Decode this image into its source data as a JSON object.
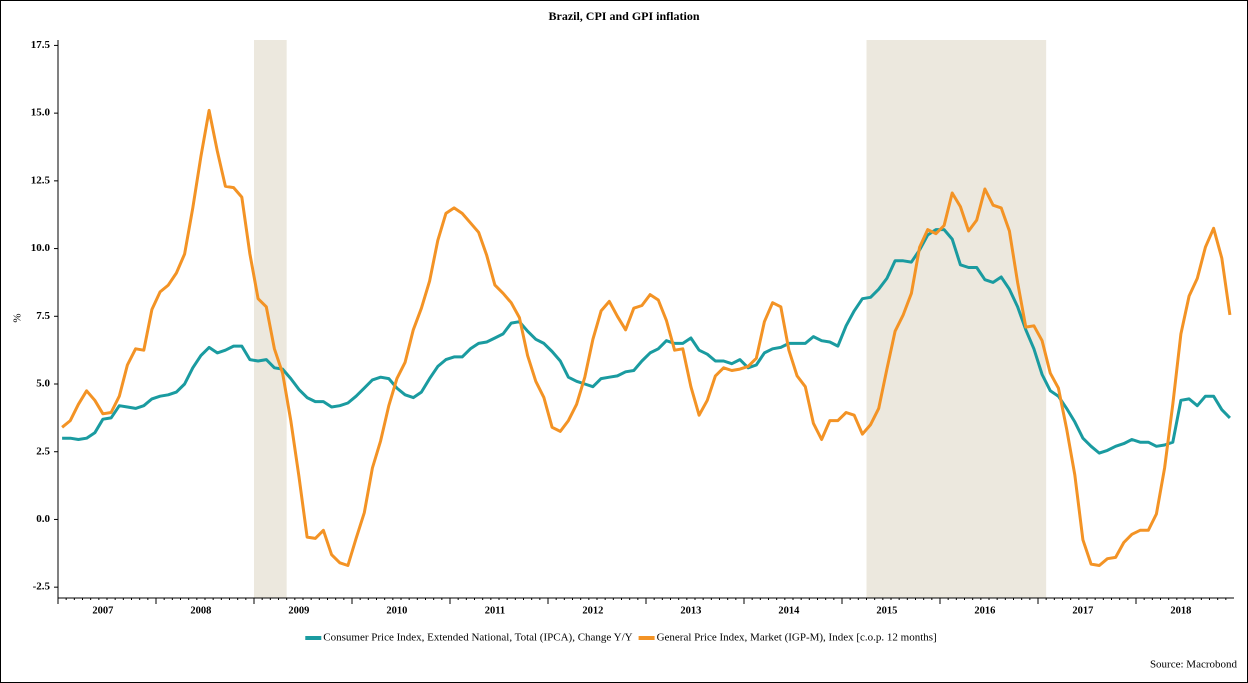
{
  "chart_data": {
    "type": "line",
    "title": "Brazil, CPI and GPI inflation",
    "y_label": "%",
    "source": "Source: Macrobond",
    "x": [
      null,
      null,
      null,
      null,
      null,
      null,
      "2007",
      null,
      null,
      null,
      null,
      null,
      null,
      null,
      null,
      null,
      null,
      null,
      "2008",
      null,
      null,
      null,
      null,
      null,
      null,
      null,
      null,
      null,
      null,
      null,
      "2009",
      null,
      null,
      null,
      null,
      null,
      null,
      null,
      null,
      null,
      null,
      null,
      "2010",
      null,
      null,
      null,
      null,
      null,
      null,
      null,
      null,
      null,
      null,
      null,
      "2011",
      null,
      null,
      null,
      null,
      null,
      null,
      null,
      null,
      null,
      null,
      null,
      "2012",
      null,
      null,
      null,
      null,
      null,
      null,
      null,
      null,
      null,
      null,
      null,
      "2013",
      null,
      null,
      null,
      null,
      null,
      null,
      null,
      null,
      null,
      null,
      null,
      "2014",
      null,
      null,
      null,
      null,
      null,
      null,
      null,
      null,
      null,
      null,
      null,
      "2015",
      null,
      null,
      null,
      null,
      null,
      null,
      null,
      null,
      null,
      null,
      null,
      "2016",
      null,
      null,
      null,
      null,
      null,
      null,
      null,
      null,
      null,
      null,
      null,
      "2017",
      null,
      null,
      null,
      null,
      null,
      null,
      null,
      null,
      null,
      null,
      null,
      "2018",
      null,
      null,
      null,
      null,
      null
    ],
    "series": [
      {
        "name": "Consumer Price Index, Extended National, Total (IPCA), Change Y/Y",
        "color": "#1a9ba0",
        "values": [
          3.0,
          3.0,
          2.95,
          3.0,
          3.2,
          3.7,
          3.75,
          4.2,
          4.15,
          4.1,
          4.2,
          4.45,
          4.55,
          4.6,
          4.7,
          5.0,
          5.6,
          6.05,
          6.35,
          6.15,
          6.25,
          6.4,
          6.4,
          5.9,
          5.85,
          5.9,
          5.6,
          5.55,
          5.2,
          4.8,
          4.5,
          4.35,
          4.35,
          4.15,
          4.2,
          4.3,
          4.55,
          4.85,
          5.15,
          5.25,
          5.2,
          4.85,
          4.6,
          4.5,
          4.7,
          5.2,
          5.65,
          5.9,
          6.0,
          6.0,
          6.3,
          6.5,
          6.55,
          6.7,
          6.85,
          7.25,
          7.3,
          6.95,
          6.65,
          6.5,
          6.2,
          5.85,
          5.25,
          5.1,
          5.0,
          4.9,
          5.2,
          5.25,
          5.3,
          5.45,
          5.5,
          5.85,
          6.15,
          6.3,
          6.6,
          6.5,
          6.5,
          6.7,
          6.25,
          6.1,
          5.85,
          5.85,
          5.75,
          5.9,
          5.6,
          5.7,
          6.15,
          6.3,
          6.35,
          6.5,
          6.5,
          6.5,
          6.75,
          6.6,
          6.55,
          6.4,
          7.15,
          7.7,
          8.15,
          8.2,
          8.5,
          8.9,
          9.55,
          9.55,
          9.5,
          9.95,
          10.5,
          10.7,
          10.7,
          10.35,
          9.4,
          9.3,
          9.3,
          8.85,
          8.75,
          8.95,
          8.5,
          7.85,
          7.0,
          6.3,
          5.35,
          4.75,
          4.55,
          4.1,
          3.6,
          3.0,
          2.7,
          2.45,
          2.55,
          2.7,
          2.8,
          2.95,
          2.85,
          2.85,
          2.7,
          2.75,
          2.85,
          4.4,
          4.45,
          4.2,
          4.55,
          4.55,
          4.05,
          3.75
        ]
      },
      {
        "name": "General Price Index, Market (IGP-M), Index [c.o.p. 12 months]",
        "color": "#f39325",
        "values": [
          3.4,
          3.65,
          4.25,
          4.75,
          4.4,
          3.9,
          3.95,
          4.55,
          5.7,
          6.3,
          6.25,
          7.75,
          8.4,
          8.65,
          9.1,
          9.8,
          11.5,
          13.4,
          15.1,
          13.6,
          12.3,
          12.25,
          11.9,
          9.8,
          8.15,
          7.85,
          6.3,
          5.4,
          3.65,
          1.6,
          -0.65,
          -0.7,
          -0.4,
          -1.3,
          -1.6,
          -1.7,
          -0.7,
          0.25,
          1.9,
          2.9,
          4.2,
          5.2,
          5.8,
          7.0,
          7.8,
          8.8,
          10.3,
          11.3,
          11.5,
          11.3,
          10.95,
          10.6,
          9.75,
          8.65,
          8.35,
          8.0,
          7.45,
          6.05,
          5.1,
          4.5,
          3.4,
          3.25,
          3.65,
          4.25,
          5.25,
          6.65,
          7.7,
          8.05,
          7.5,
          7.0,
          7.8,
          7.9,
          8.3,
          8.1,
          7.35,
          6.25,
          6.3,
          4.9,
          3.85,
          4.4,
          5.3,
          5.6,
          5.5,
          5.55,
          5.65,
          5.95,
          7.3,
          8.0,
          7.85,
          6.25,
          5.3,
          4.9,
          3.55,
          2.95,
          3.65,
          3.65,
          3.95,
          3.85,
          3.15,
          3.5,
          4.1,
          5.55,
          6.95,
          7.55,
          8.35,
          10.05,
          10.7,
          10.55,
          10.85,
          12.05,
          11.55,
          10.65,
          11.05,
          12.2,
          11.6,
          11.5,
          10.65,
          8.75,
          7.1,
          7.15,
          6.6,
          5.4,
          4.85,
          3.35,
          1.65,
          -0.75,
          -1.65,
          -1.7,
          -1.45,
          -1.4,
          -0.85,
          -0.55,
          -0.4,
          -0.4,
          0.2,
          1.9,
          4.25,
          6.85,
          8.25,
          8.9,
          10.05,
          10.75,
          9.65,
          7.55
        ]
      }
    ],
    "shaded_periods": [
      {
        "from": 24,
        "to": 28,
        "color": "#ece8de"
      },
      {
        "from": 99,
        "to": 121,
        "color": "#ece8de"
      }
    ],
    "ylim": [
      -2.9,
      17.7
    ],
    "yticks": [
      {
        "value": -2.5,
        "label": "-2.5"
      },
      {
        "value": 0,
        "label": "0.0"
      },
      {
        "value": 2.5,
        "label": "2.5"
      },
      {
        "value": 5,
        "label": "5.0"
      },
      {
        "value": 7.5,
        "label": "7.5"
      },
      {
        "value": 10,
        "label": "10.0"
      },
      {
        "value": 12.5,
        "label": "12.5"
      },
      {
        "value": 15,
        "label": "15.0"
      },
      {
        "value": 17.5,
        "label": "17.5"
      }
    ],
    "legend": "bottom"
  }
}
